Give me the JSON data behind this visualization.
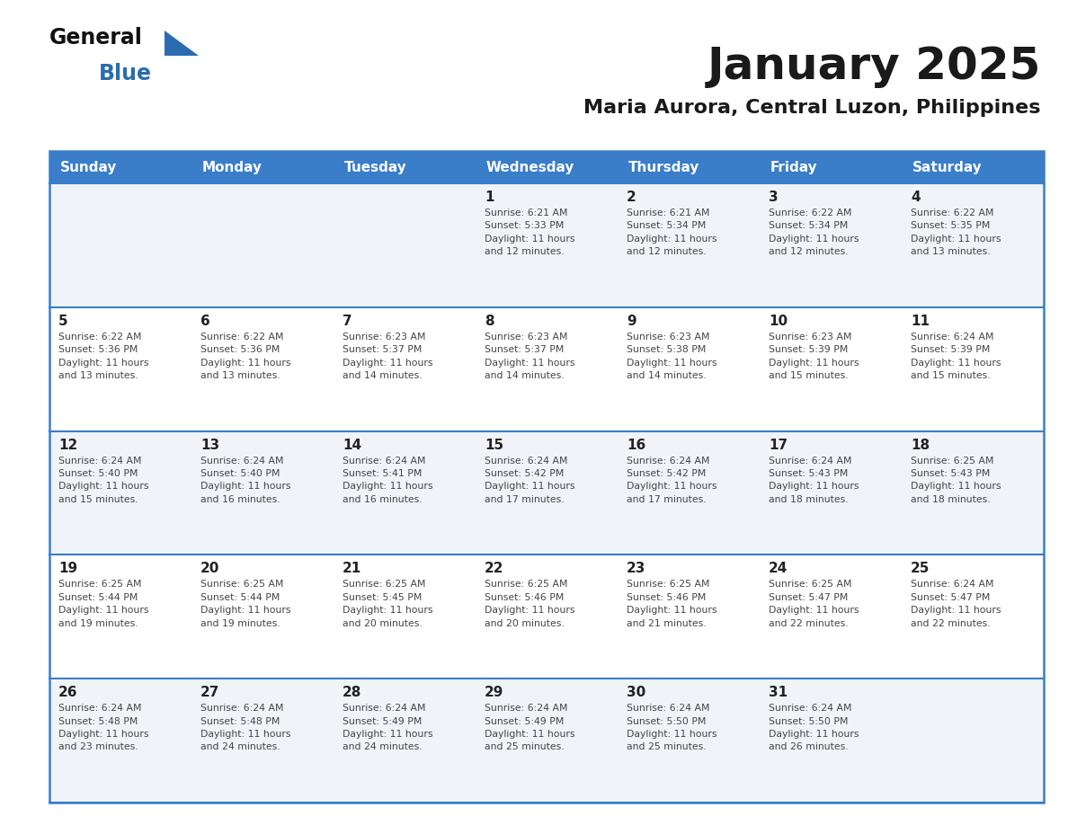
{
  "title": "January 2025",
  "subtitle": "Maria Aurora, Central Luzon, Philippines",
  "header_bg": "#3A7DC9",
  "header_text": "#FFFFFF",
  "odd_row_bg": "#F0F4F8",
  "even_row_bg": "#FFFFFF",
  "row_separator_color": "#3A7DC9",
  "outer_border_color": "#3A7DC9",
  "day_headers": [
    "Sunday",
    "Monday",
    "Tuesday",
    "Wednesday",
    "Thursday",
    "Friday",
    "Saturday"
  ],
  "title_color": "#1A1A1A",
  "subtitle_color": "#1A1A1A",
  "day_number_color": "#222222",
  "cell_text_color": "#444444",
  "logo_general_color": "#111111",
  "logo_blue_color": "#2B6CB0",
  "logo_triangle_color": "#2B6CB0",
  "calendar_data": [
    [
      "",
      "",
      "",
      "1\nSunrise: 6:21 AM\nSunset: 5:33 PM\nDaylight: 11 hours\nand 12 minutes.",
      "2\nSunrise: 6:21 AM\nSunset: 5:34 PM\nDaylight: 11 hours\nand 12 minutes.",
      "3\nSunrise: 6:22 AM\nSunset: 5:34 PM\nDaylight: 11 hours\nand 12 minutes.",
      "4\nSunrise: 6:22 AM\nSunset: 5:35 PM\nDaylight: 11 hours\nand 13 minutes."
    ],
    [
      "5\nSunrise: 6:22 AM\nSunset: 5:36 PM\nDaylight: 11 hours\nand 13 minutes.",
      "6\nSunrise: 6:22 AM\nSunset: 5:36 PM\nDaylight: 11 hours\nand 13 minutes.",
      "7\nSunrise: 6:23 AM\nSunset: 5:37 PM\nDaylight: 11 hours\nand 14 minutes.",
      "8\nSunrise: 6:23 AM\nSunset: 5:37 PM\nDaylight: 11 hours\nand 14 minutes.",
      "9\nSunrise: 6:23 AM\nSunset: 5:38 PM\nDaylight: 11 hours\nand 14 minutes.",
      "10\nSunrise: 6:23 AM\nSunset: 5:39 PM\nDaylight: 11 hours\nand 15 minutes.",
      "11\nSunrise: 6:24 AM\nSunset: 5:39 PM\nDaylight: 11 hours\nand 15 minutes."
    ],
    [
      "12\nSunrise: 6:24 AM\nSunset: 5:40 PM\nDaylight: 11 hours\nand 15 minutes.",
      "13\nSunrise: 6:24 AM\nSunset: 5:40 PM\nDaylight: 11 hours\nand 16 minutes.",
      "14\nSunrise: 6:24 AM\nSunset: 5:41 PM\nDaylight: 11 hours\nand 16 minutes.",
      "15\nSunrise: 6:24 AM\nSunset: 5:42 PM\nDaylight: 11 hours\nand 17 minutes.",
      "16\nSunrise: 6:24 AM\nSunset: 5:42 PM\nDaylight: 11 hours\nand 17 minutes.",
      "17\nSunrise: 6:24 AM\nSunset: 5:43 PM\nDaylight: 11 hours\nand 18 minutes.",
      "18\nSunrise: 6:25 AM\nSunset: 5:43 PM\nDaylight: 11 hours\nand 18 minutes."
    ],
    [
      "19\nSunrise: 6:25 AM\nSunset: 5:44 PM\nDaylight: 11 hours\nand 19 minutes.",
      "20\nSunrise: 6:25 AM\nSunset: 5:44 PM\nDaylight: 11 hours\nand 19 minutes.",
      "21\nSunrise: 6:25 AM\nSunset: 5:45 PM\nDaylight: 11 hours\nand 20 minutes.",
      "22\nSunrise: 6:25 AM\nSunset: 5:46 PM\nDaylight: 11 hours\nand 20 minutes.",
      "23\nSunrise: 6:25 AM\nSunset: 5:46 PM\nDaylight: 11 hours\nand 21 minutes.",
      "24\nSunrise: 6:25 AM\nSunset: 5:47 PM\nDaylight: 11 hours\nand 22 minutes.",
      "25\nSunrise: 6:24 AM\nSunset: 5:47 PM\nDaylight: 11 hours\nand 22 minutes."
    ],
    [
      "26\nSunrise: 6:24 AM\nSunset: 5:48 PM\nDaylight: 11 hours\nand 23 minutes.",
      "27\nSunrise: 6:24 AM\nSunset: 5:48 PM\nDaylight: 11 hours\nand 24 minutes.",
      "28\nSunrise: 6:24 AM\nSunset: 5:49 PM\nDaylight: 11 hours\nand 24 minutes.",
      "29\nSunrise: 6:24 AM\nSunset: 5:49 PM\nDaylight: 11 hours\nand 25 minutes.",
      "30\nSunrise: 6:24 AM\nSunset: 5:50 PM\nDaylight: 11 hours\nand 25 minutes.",
      "31\nSunrise: 6:24 AM\nSunset: 5:50 PM\nDaylight: 11 hours\nand 26 minutes.",
      ""
    ]
  ]
}
